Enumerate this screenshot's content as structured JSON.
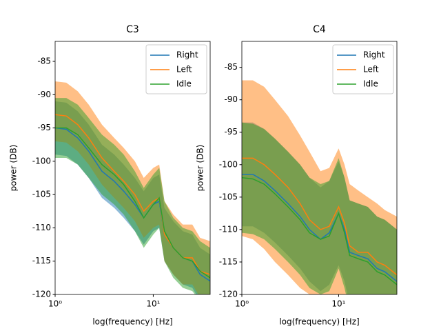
{
  "chart_data": [
    {
      "type": "line",
      "title": "C3",
      "xlabel": "log(frequency) [Hz]",
      "ylabel": "power (DB)",
      "xscale": "log",
      "xlim": [
        1,
        38
      ],
      "xticks": [
        {
          "value": 1,
          "label": "10⁰"
        },
        {
          "value": 10,
          "label": "10¹"
        }
      ],
      "ylim": [
        -120,
        -82
      ],
      "yticks": [
        -85,
        -90,
        -95,
        -100,
        -105,
        -110,
        -115,
        -120
      ],
      "legend": "upper right",
      "band_opacity": 0.5,
      "x": [
        1,
        1.3,
        1.7,
        2.2,
        3,
        4,
        5,
        6.5,
        8,
        10,
        11.5,
        13,
        16,
        20,
        25,
        30,
        38
      ],
      "series": [
        {
          "name": "Right",
          "color": "#1f77b4",
          "values": [
            -95,
            -95.2,
            -96.5,
            -98.5,
            -101.5,
            -103,
            -104.5,
            -106.5,
            -108.5,
            -106.5,
            -106,
            -111,
            -113,
            -114.5,
            -115,
            -117,
            -118
          ],
          "upper": [
            -91,
            -91.2,
            -92.5,
            -94.5,
            -97.5,
            -99,
            -100.5,
            -102.5,
            -104.5,
            -102.5,
            -102,
            -107,
            -109,
            -110.5,
            -111,
            -113,
            -114
          ],
          "lower": [
            -99,
            -99.2,
            -100.5,
            -102.5,
            -105.5,
            -107,
            -108.5,
            -110.5,
            -112.5,
            -110.5,
            -110,
            -115,
            -117,
            -118.5,
            -119,
            -121,
            -122
          ]
        },
        {
          "name": "Left",
          "color": "#ff7f0e",
          "values": [
            -93,
            -93.2,
            -94.5,
            -96.5,
            -99.5,
            -101.5,
            -103,
            -105,
            -107.5,
            -106,
            -105.5,
            -111,
            -113,
            -114.5,
            -114.5,
            -116.5,
            -117
          ],
          "upper": [
            -88,
            -88.2,
            -89.5,
            -91.5,
            -94.5,
            -96.5,
            -98,
            -100,
            -102.5,
            -101,
            -100.5,
            -106,
            -108,
            -109.5,
            -109.5,
            -111.5,
            -112
          ],
          "lower": [
            -97,
            -97.2,
            -98.5,
            -100.5,
            -103.5,
            -105.5,
            -107,
            -109,
            -111.5,
            -110,
            -109.5,
            -115,
            -117,
            -118.5,
            -118.5,
            -120.5,
            -121
          ]
        },
        {
          "name": "Idle",
          "color": "#2ca02c",
          "values": [
            -95,
            -95,
            -96,
            -98,
            -100.5,
            -102,
            -103.5,
            -106,
            -108.5,
            -106.5,
            -105.5,
            -110.5,
            -113,
            -114.5,
            -115,
            -116.5,
            -117.5
          ],
          "upper": [
            -90.5,
            -90.5,
            -91.5,
            -93.5,
            -96,
            -97.5,
            -99,
            -101.5,
            -104,
            -102,
            -101,
            -106,
            -108.5,
            -110,
            -110.5,
            -112,
            -113
          ],
          "lower": [
            -99.5,
            -99.5,
            -100.5,
            -102.5,
            -105,
            -106.5,
            -108,
            -110.5,
            -113,
            -111,
            -110,
            -115,
            -117.5,
            -119,
            -119.5,
            -121,
            -122
          ]
        }
      ]
    },
    {
      "type": "line",
      "title": "C4",
      "xlabel": "log(frequency) [Hz]",
      "ylabel": "power (DB)",
      "xscale": "log",
      "xlim": [
        1,
        40
      ],
      "xticks": [
        {
          "value": 1,
          "label": "10⁰"
        },
        {
          "value": 10,
          "label": "10¹"
        }
      ],
      "ylim": [
        -120,
        -81
      ],
      "yticks": [
        -85,
        -90,
        -95,
        -100,
        -105,
        -110,
        -115,
        -120
      ],
      "legend": "upper right",
      "band_opacity": 0.5,
      "x": [
        1,
        1.3,
        1.7,
        2.2,
        3,
        4,
        5,
        6.5,
        8,
        10,
        11.5,
        13,
        16,
        20,
        25,
        30,
        40
      ],
      "series": [
        {
          "name": "Right",
          "color": "#1f77b4",
          "values": [
            -101.5,
            -101.5,
            -102.5,
            -104,
            -106,
            -108,
            -110,
            -111.5,
            -110.5,
            -107.5,
            -110,
            -113.5,
            -114,
            -114.5,
            -116,
            -116.5,
            -118
          ],
          "upper": [
            -93.5,
            -93.5,
            -94.5,
            -96,
            -98,
            -100,
            -102,
            -103.5,
            -102.5,
            -99.5,
            -102,
            -105.5,
            -106,
            -106.5,
            -108,
            -108.5,
            -110
          ],
          "lower": [
            -109.5,
            -109.5,
            -110.5,
            -112,
            -114,
            -116,
            -118,
            -119.5,
            -118.5,
            -115.5,
            -118,
            -121.5,
            -122,
            -122.5,
            -124,
            -124.5,
            -126
          ]
        },
        {
          "name": "Left",
          "color": "#ff7f0e",
          "values": [
            -99,
            -99,
            -100,
            -101.5,
            -103.5,
            -106,
            -108.5,
            -110,
            -109.5,
            -106.5,
            -109,
            -112.5,
            -113.5,
            -113.5,
            -115,
            -115.5,
            -117
          ],
          "upper": [
            -87,
            -87,
            -88,
            -90,
            -92.5,
            -95.5,
            -98,
            -101,
            -100.5,
            -97.5,
            -100,
            -103,
            -104,
            -105,
            -106,
            -107,
            -108
          ],
          "lower": [
            -111,
            -111.5,
            -113,
            -115,
            -117,
            -119,
            -120,
            -121,
            -122,
            -121,
            -122,
            -123,
            -123,
            -123,
            -123,
            -123,
            -123
          ]
        },
        {
          "name": "Idle",
          "color": "#2ca02c",
          "values": [
            -102,
            -102.2,
            -103,
            -104.5,
            -106.5,
            -108.5,
            -110.5,
            -111.5,
            -111,
            -107.5,
            -110.5,
            -114,
            -114.5,
            -115,
            -116.5,
            -117,
            -118.5
          ],
          "upper": [
            -93.5,
            -93.7,
            -94.5,
            -96,
            -98,
            -100,
            -102,
            -103,
            -102.5,
            -99,
            -102,
            -105.5,
            -106,
            -106.5,
            -108,
            -108.5,
            -110
          ],
          "lower": [
            -110.5,
            -110.7,
            -111.5,
            -113,
            -115,
            -117,
            -119,
            -120,
            -119.5,
            -116,
            -119,
            -122.5,
            -123,
            -123.5,
            -125,
            -125.5,
            -127
          ]
        }
      ]
    }
  ]
}
